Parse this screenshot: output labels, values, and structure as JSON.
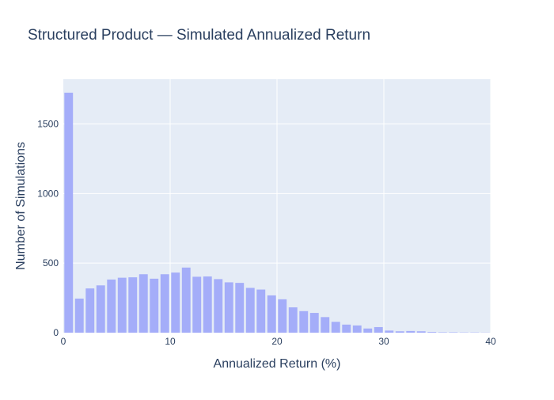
{
  "chart_data": {
    "type": "bar",
    "title": "Structured Product — Simulated Annualized Return",
    "xlabel": "Annualized Return (%)",
    "ylabel": "Number of Simulations",
    "xlim": [
      0,
      40
    ],
    "ylim": [
      0,
      1822
    ],
    "xticks": [
      0,
      10,
      20,
      30,
      40
    ],
    "yticks": [
      0,
      500,
      1000,
      1500
    ],
    "bin_width": 1,
    "bar_color": "#a4adf9",
    "plot_bg": "#e5ecf6",
    "grid": true,
    "series": [
      {
        "x": [
          0.5,
          1.5,
          2.5,
          3.5,
          4.5,
          5.5,
          6.5,
          7.5,
          8.5,
          9.5,
          10.5,
          11.5,
          12.5,
          13.5,
          14.5,
          15.5,
          16.5,
          17.5,
          18.5,
          19.5,
          20.5,
          21.5,
          22.5,
          23.5,
          24.5,
          25.5,
          26.5,
          27.5,
          28.5,
          29.5,
          30.5,
          31.5,
          32.5,
          33.5,
          34.5,
          35.5,
          36.5,
          37.5,
          38.5,
          39.5
        ],
        "values": [
          1725,
          245,
          318,
          340,
          382,
          395,
          398,
          420,
          388,
          420,
          432,
          468,
          402,
          404,
          385,
          362,
          358,
          322,
          310,
          268,
          240,
          182,
          155,
          142,
          112,
          78,
          58,
          52,
          30,
          40,
          15,
          10,
          12,
          10,
          5,
          3,
          3,
          2,
          2,
          1
        ]
      }
    ]
  }
}
